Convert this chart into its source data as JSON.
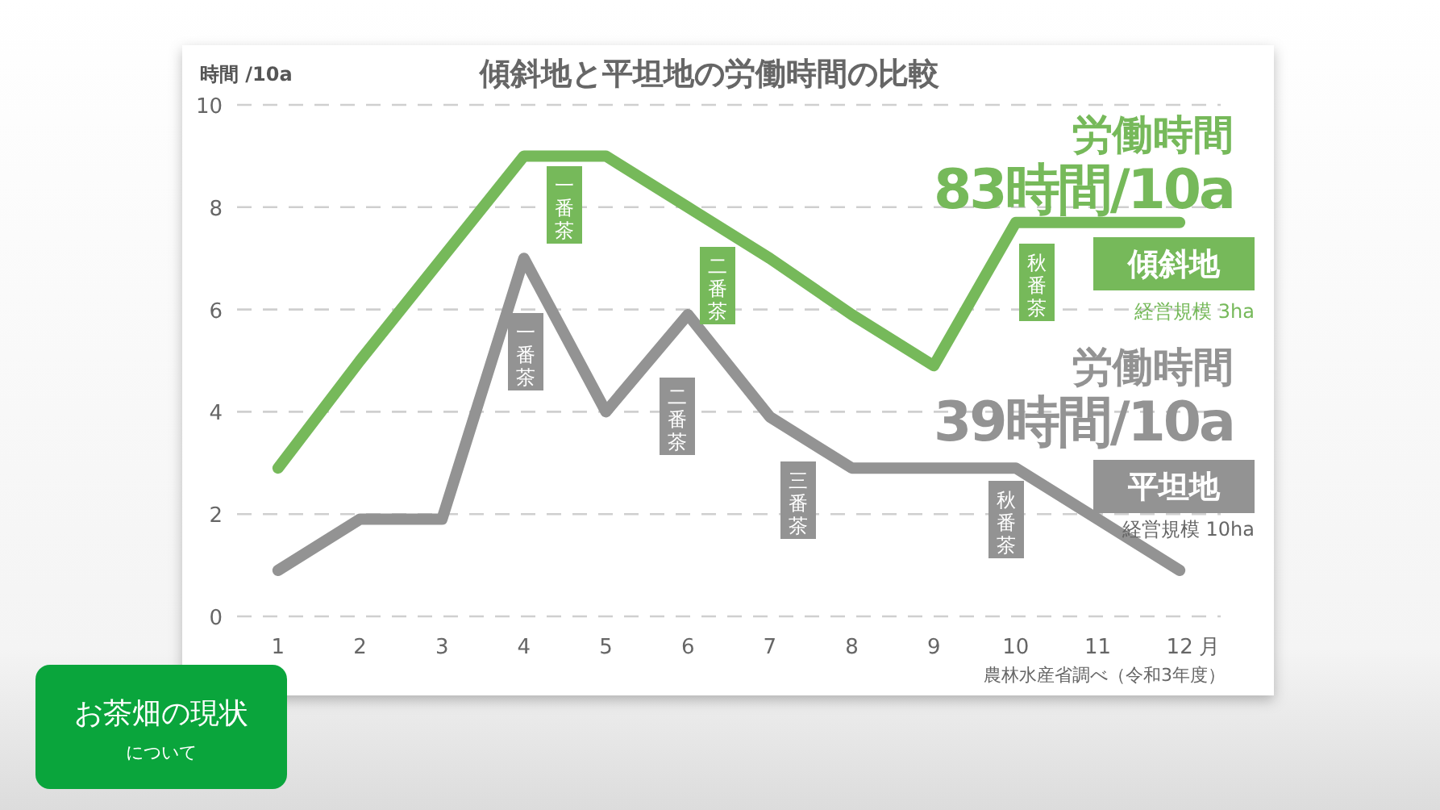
{
  "chart_data": {
    "type": "line",
    "title": "傾斜地と平坦地の労働時間の比較",
    "ylabel": "時間 /10a",
    "xlabel": "月",
    "x": [
      1,
      2,
      3,
      4,
      5,
      6,
      7,
      8,
      9,
      10,
      11,
      12
    ],
    "series": [
      {
        "name": "傾斜地",
        "color": "#76b95a",
        "values": [
          2.9,
          5.0,
          7.0,
          9.0,
          9.0,
          8.0,
          7.0,
          5.9,
          4.9,
          7.7,
          7.7,
          7.7
        ]
      },
      {
        "name": "平坦地",
        "color": "#939393",
        "values": [
          0.9,
          1.9,
          1.9,
          7.0,
          4.0,
          5.9,
          3.9,
          2.9,
          2.9,
          2.9,
          1.9,
          0.9
        ]
      }
    ],
    "xlim": [
      0.5,
      12.5
    ],
    "xticks": [
      1,
      2,
      3,
      4,
      5,
      6,
      7,
      8,
      9,
      10,
      11,
      12
    ],
    "ylim": [
      0,
      10
    ],
    "yticks": [
      0,
      2,
      4,
      6,
      8,
      10
    ],
    "grid": "y",
    "legend": "right",
    "marker": "none",
    "line_style": "solid",
    "annotations": [
      "労働時間",
      "83時間/10a",
      "経営規模 3ha",
      "労働時間",
      "39時間/10a",
      "経営規模 10ha",
      "一番茶",
      "二番茶",
      "秋番茶",
      "一番茶",
      "二番茶",
      "三番茶",
      "秋番茶",
      "農林水産省調べ（令和3年度）",
      "お茶畑の現状",
      "について"
    ]
  }
}
